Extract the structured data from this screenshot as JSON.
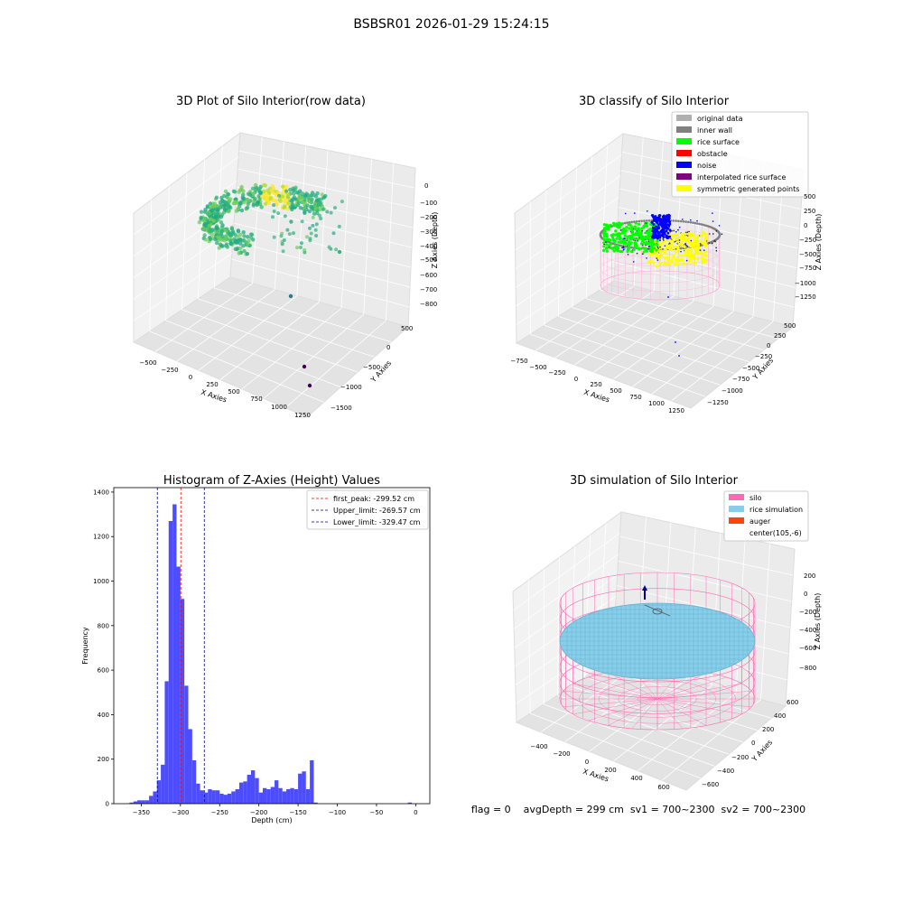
{
  "suptitle": "BSBSR01 2026-01-29 15:24:15",
  "status_line": "flag = 0    avgDepth = 299 cm  sv1 = 700~2300  sv2 = 700~2300",
  "chart_data": [
    {
      "type": "scatter3d",
      "title": "3D Plot of Silo Interior(row data)",
      "xlabel": "X Axies",
      "ylabel": "Y Axies",
      "zlabel": "Z Axies (Depth)",
      "x_ticks": [
        "−500",
        "−250",
        "0",
        "250",
        "500",
        "750",
        "1000",
        "1250"
      ],
      "y_ticks": [
        "−1500",
        "−1000",
        "−500",
        "0",
        "500"
      ],
      "z_ticks": [
        "0",
        "−100",
        "−200",
        "−300",
        "−400",
        "−500",
        "−600",
        "−700",
        "−800"
      ],
      "grid": true
    },
    {
      "type": "scatter3d",
      "title": "3D classify of Silo Interior",
      "xlabel": "X Axies",
      "ylabel": "Y Axies",
      "zlabel": "Z Axies (Depth)",
      "x_ticks": [
        "−750",
        "−500",
        "−250",
        "0",
        "250",
        "500",
        "750",
        "1000",
        "1250"
      ],
      "y_ticks": [
        "−1250",
        "−1000",
        "−750",
        "−500",
        "−250",
        "0",
        "250",
        "500"
      ],
      "z_ticks": [
        "500",
        "250",
        "0",
        "−250",
        "−500",
        "−750",
        "−1000",
        "−1250"
      ],
      "legend_position": "top-right",
      "legend": [
        {
          "label": "original data",
          "color": "#b0b0b0"
        },
        {
          "label": "inner wall",
          "color": "#808080"
        },
        {
          "label": "rice surface",
          "color": "#00ff00"
        },
        {
          "label": "obstacle",
          "color": "#ff0000"
        },
        {
          "label": "noise",
          "color": "#0000ff"
        },
        {
          "label": "interpolated rice surface",
          "color": "#800080"
        },
        {
          "label": "symmetric generated points",
          "color": "#ffff00"
        }
      ],
      "grid": true
    },
    {
      "type": "bar",
      "title": "Histogram of Z-Axies (Height) Values",
      "xlabel": "Depth (cm)",
      "ylabel": "Frequency",
      "xlim": [
        -385,
        18
      ],
      "ylim": [
        0,
        1420
      ],
      "x_ticks": [
        -350,
        -300,
        -250,
        -200,
        -150,
        -100,
        -50,
        0
      ],
      "y_ticks": [
        0,
        200,
        400,
        600,
        800,
        1000,
        1200,
        1400
      ],
      "bin_width": 5,
      "bin_starts": [
        -365,
        -360,
        -355,
        -350,
        -345,
        -340,
        -335,
        -330,
        -325,
        -320,
        -315,
        -310,
        -305,
        -300,
        -295,
        -290,
        -285,
        -280,
        -275,
        -270,
        -265,
        -260,
        -255,
        -250,
        -245,
        -240,
        -235,
        -230,
        -225,
        -220,
        -215,
        -210,
        -205,
        -200,
        -195,
        -190,
        -185,
        -180,
        -175,
        -170,
        -165,
        -160,
        -155,
        -150,
        -145,
        -140,
        -135,
        -130,
        -125,
        -120,
        -115,
        -110,
        -105,
        -100,
        -95,
        -90,
        -85,
        -80,
        -75,
        -70,
        -65,
        -60,
        -55,
        -50,
        -45,
        -40,
        -35,
        -30,
        -25,
        -20,
        -15,
        -10,
        -5
      ],
      "values": [
        5,
        10,
        15,
        15,
        15,
        35,
        55,
        105,
        175,
        550,
        1270,
        1345,
        1065,
        920,
        530,
        335,
        195,
        90,
        60,
        50,
        65,
        60,
        60,
        45,
        40,
        45,
        55,
        65,
        95,
        100,
        130,
        150,
        115,
        50,
        70,
        65,
        75,
        105,
        70,
        55,
        65,
        70,
        65,
        135,
        145,
        65,
        195,
        5,
        0,
        0,
        0,
        0,
        0,
        0,
        0,
        0,
        0,
        0,
        0,
        0,
        0,
        0,
        0,
        0,
        0,
        0,
        0,
        0,
        0,
        0,
        0,
        5,
        0
      ],
      "bar_color": "#4d4dff",
      "grid": false,
      "legend_position": "top-right",
      "lines": [
        {
          "label": "first_peak: -299.52 cm",
          "x": -299.52,
          "color": "#ff0000"
        },
        {
          "label": "Upper_limit: -269.57 cm",
          "x": -269.57,
          "color": "#00008b"
        },
        {
          "label": "Lower_limit: -329.47 cm",
          "x": -329.47,
          "color": "#00008b"
        }
      ]
    },
    {
      "type": "surface3d",
      "title": "3D simulation of Silo Interior",
      "xlabel": "X Axies",
      "ylabel": "Y Axies",
      "zlabel": "Z Axies (Depth)",
      "x_ticks": [
        "−400",
        "−200",
        "0",
        "200",
        "400",
        "600"
      ],
      "y_ticks": [
        "−600",
        "−400",
        "−200",
        "0",
        "200",
        "400",
        "600"
      ],
      "z_ticks": [
        "200",
        "0",
        "−200",
        "−400",
        "−600",
        "−800"
      ],
      "legend_position": "top-right",
      "legend": [
        {
          "label": "silo",
          "color": "#ff69b4"
        },
        {
          "label": "rice simulation",
          "color": "#87ceeb"
        },
        {
          "label": "auger",
          "color": "#ff4500"
        },
        {
          "label": "center(105,-6)",
          "color": "none"
        }
      ],
      "grid": true
    }
  ]
}
